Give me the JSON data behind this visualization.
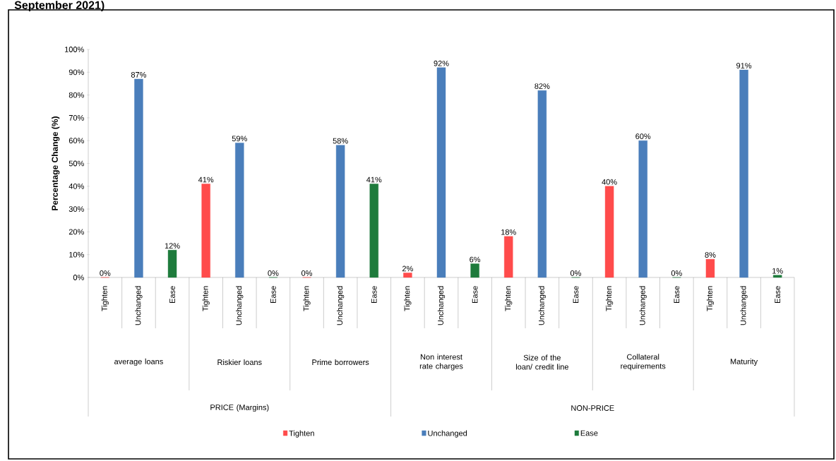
{
  "chart_data": {
    "type": "bar",
    "title": "September 2021)",
    "ylabel": "Percentage  Change  (%)",
    "categories": [
      "Tighten",
      "Unchanged",
      "Ease",
      "Tighten",
      "Unchanged",
      "Ease",
      "Tighten",
      "Unchanged",
      "Ease",
      "Tighten",
      "Unchanged",
      "Ease",
      "Tighten",
      "Unchanged",
      "Ease",
      "Tighten",
      "Unchanged",
      "Ease",
      "Tighten",
      "Unchanged",
      "Ease"
    ],
    "series": [
      {
        "name": "Tighten",
        "color": "#ff4b4b",
        "values": [
          0,
          null,
          null,
          41,
          null,
          null,
          0,
          null,
          null,
          2,
          null,
          null,
          18,
          null,
          null,
          40,
          null,
          null,
          8,
          null,
          null
        ],
        "value_labels": [
          "0%",
          null,
          null,
          "41%",
          null,
          null,
          "0%",
          null,
          null,
          "2%",
          null,
          null,
          "18%",
          null,
          null,
          "40%",
          null,
          null,
          "8%",
          null,
          null
        ]
      },
      {
        "name": "Unchanged",
        "color": "#4a7ebb",
        "values": [
          null,
          87,
          null,
          null,
          59,
          null,
          null,
          58,
          null,
          null,
          92,
          null,
          null,
          82,
          null,
          null,
          60,
          null,
          null,
          91,
          null
        ],
        "value_labels": [
          null,
          "87%",
          null,
          null,
          "59%",
          null,
          null,
          "58%",
          null,
          null,
          "92%",
          null,
          null,
          "82%",
          null,
          null,
          "60%",
          null,
          null,
          "91%",
          null
        ]
      },
      {
        "name": "Ease",
        "color": "#1e7b3c",
        "values": [
          null,
          null,
          12,
          null,
          null,
          0,
          null,
          null,
          41,
          null,
          null,
          6,
          null,
          null,
          0,
          null,
          null,
          0,
          null,
          null,
          1
        ],
        "value_labels": [
          null,
          null,
          "12%",
          null,
          null,
          "0%",
          null,
          null,
          "41%",
          null,
          null,
          "6%",
          null,
          null,
          "0%",
          null,
          null,
          "0%",
          null,
          null,
          "1%"
        ]
      }
    ],
    "ylim": [
      0,
      100
    ],
    "yticks": [
      {
        "value": 0,
        "label": "0%"
      },
      {
        "value": 10,
        "label": "10%"
      },
      {
        "value": 20,
        "label": "20%"
      },
      {
        "value": 30,
        "label": "30%"
      },
      {
        "value": 40,
        "label": "40%"
      },
      {
        "value": 50,
        "label": "50%"
      },
      {
        "value": 60,
        "label": "60%"
      },
      {
        "value": 70,
        "label": "70%"
      },
      {
        "value": 80,
        "label": "80%"
      },
      {
        "value": 90,
        "label": "90%"
      },
      {
        "value": 100,
        "label": "100%"
      }
    ],
    "legend": "bottom",
    "annotations": [
      "average loans",
      "Riskier loans",
      "Prime borrowers",
      "Non interest rate charges",
      "Size of the loan/ credit line",
      "Collateral requirements",
      "Maturity",
      "PRICE (Margins)",
      "NON-PRICE"
    ]
  }
}
